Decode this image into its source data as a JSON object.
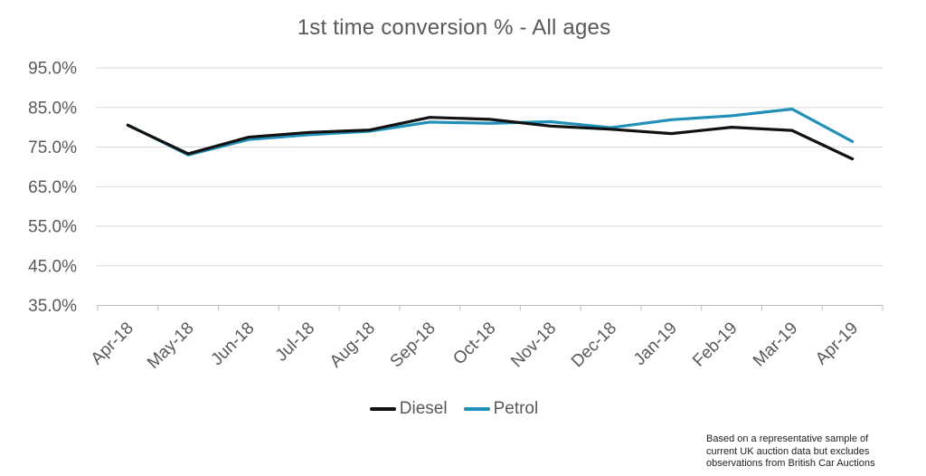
{
  "chart_data": {
    "type": "line",
    "title": "1st time conversion % - All ages",
    "categories": [
      "Apr-18",
      "May-18",
      "Jun-18",
      "Jul-18",
      "Aug-18",
      "Sep-18",
      "Oct-18",
      "Nov-18",
      "Dec-18",
      "Jan-19",
      "Feb-19",
      "Mar-19",
      "Apr-19"
    ],
    "series": [
      {
        "name": "Diesel",
        "color": "#121212",
        "values": [
          80.5,
          73.3,
          77.5,
          78.7,
          79.3,
          82.5,
          82.0,
          80.3,
          79.5,
          78.4,
          80.0,
          79.2,
          72.0
        ]
      },
      {
        "name": "Petrol",
        "color": "#2090b8",
        "values": [
          80.6,
          73.0,
          76.9,
          78.1,
          79.0,
          81.3,
          81.0,
          81.4,
          79.9,
          81.9,
          82.9,
          84.6,
          76.4
        ]
      }
    ],
    "ylim": [
      35,
      95
    ],
    "ytick_step": 10,
    "yaxis_labels": [
      "95.0%",
      "85.0%",
      "75.0%",
      "65.0%",
      "55.0%",
      "45.0%",
      "35.0%"
    ],
    "xlabel": "",
    "ylabel": "",
    "grid": "horizontal",
    "legend_position": "bottom",
    "x_label_rotation_deg": -45
  },
  "legend": {
    "items": [
      {
        "label": "Diesel"
      },
      {
        "label": "Petrol"
      }
    ]
  },
  "footnote": {
    "lines": [
      "Based on a representative sample of",
      "current UK auction data but excludes",
      "observations from British Car Auctions"
    ]
  },
  "colors": {
    "background": "#ffffff",
    "title_text": "#595959",
    "axis_label_text": "#595959",
    "gridline": "#d9d9d9",
    "axis_line": "#bfbfbf",
    "legend_text": "#595959",
    "footnote_text": "#222222",
    "diesel_line": "#121212",
    "petrol_line": "#2090b8"
  }
}
